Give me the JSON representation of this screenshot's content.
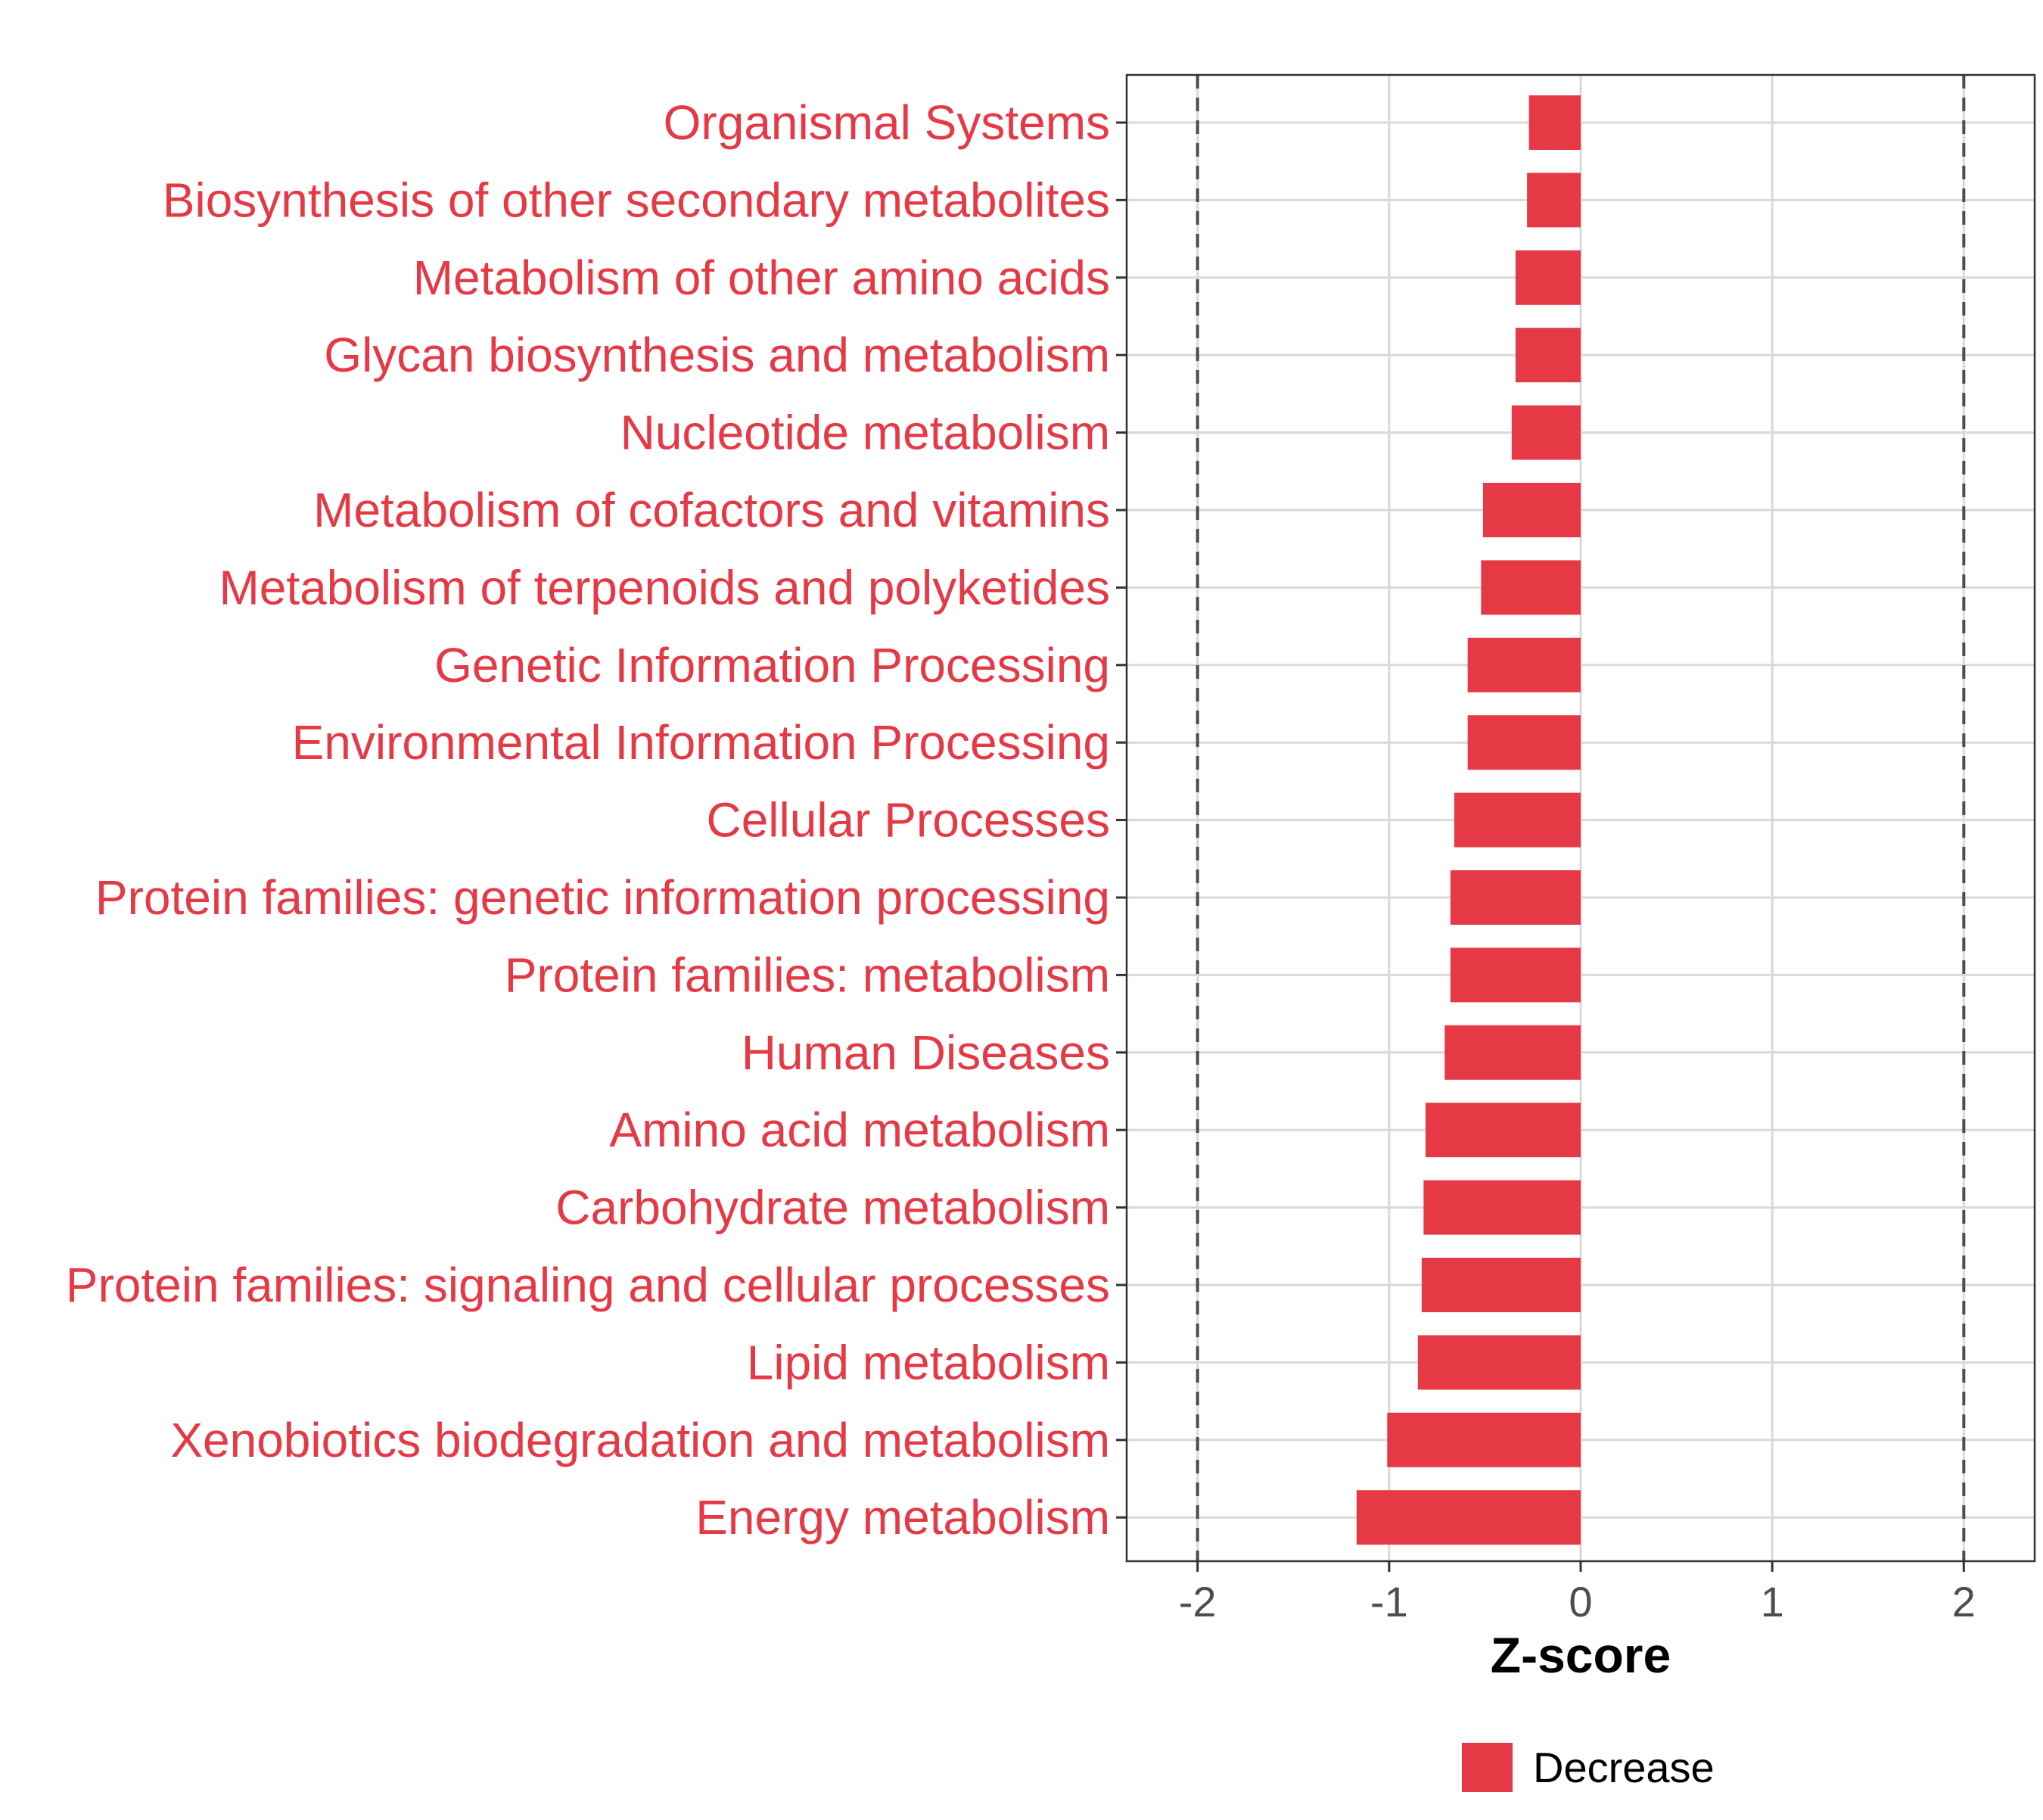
{
  "chart_data": {
    "type": "bar",
    "orientation": "horizontal",
    "categories": [
      "Organismal Systems",
      "Biosynthesis of other secondary metabolites",
      "Metabolism of other amino acids",
      "Glycan biosynthesis and metabolism",
      "Nucleotide metabolism",
      "Metabolism of cofactors and vitamins",
      "Metabolism of terpenoids and polyketides",
      "Genetic Information Processing",
      "Environmental Information Processing",
      "Cellular Processes",
      "Protein families: genetic information processing",
      "Protein families: metabolism",
      "Human Diseases",
      "Amino acid metabolism",
      "Carbohydrate metabolism",
      "Protein families: signaling and cellular processes",
      "Lipid metabolism",
      "Xenobiotics biodegradation and metabolism",
      "Energy metabolism"
    ],
    "series": [
      {
        "name": "Decrease",
        "color": "#E63946",
        "values": [
          -0.27,
          -0.28,
          -0.34,
          -0.34,
          -0.36,
          -0.51,
          -0.52,
          -0.59,
          -0.59,
          -0.66,
          -0.68,
          -0.68,
          -0.71,
          -0.81,
          -0.82,
          -0.83,
          -0.85,
          -1.01,
          -1.17
        ]
      }
    ],
    "xlabel": "Z-score",
    "ylabel": "",
    "title": "",
    "xlim": [
      -2.37,
      2.37
    ],
    "xticks": [
      "-2",
      "-1",
      "0",
      "1",
      "2"
    ],
    "xtick_values": [
      -2,
      -1,
      0,
      1,
      2
    ],
    "reference_lines": [
      -2,
      2
    ],
    "grid": true,
    "legend_position": "bottom",
    "category_label_color": "#E63946"
  }
}
